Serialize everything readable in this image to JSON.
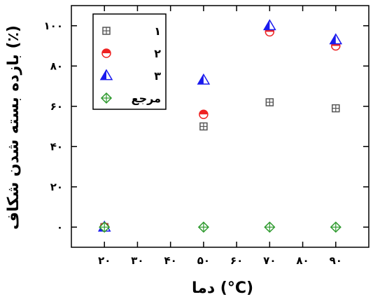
{
  "chart_data": {
    "type": "scatter",
    "xlabel": "دما (°C)",
    "ylabel": "بازده بسته شدن شکاف (٪)",
    "xlim": [
      10,
      100
    ],
    "ylim": [
      -10,
      110
    ],
    "x_ticks": [
      20,
      30,
      40,
      50,
      60,
      70,
      80,
      90
    ],
    "x_tick_labels": [
      "۲۰",
      "۳۰",
      "۴۰",
      "۵۰",
      "۶۰",
      "۷۰",
      "۸۰",
      "۹۰"
    ],
    "y_ticks": [
      0,
      20,
      40,
      60,
      80,
      100
    ],
    "y_tick_labels": [
      "۰",
      "۲۰",
      "۴۰",
      "۶۰",
      "۸۰",
      "۱۰۰"
    ],
    "legend_position": "top-left",
    "series": [
      {
        "name": "۱",
        "marker": "boxplus",
        "color": "#555555",
        "x": [
          20,
          50,
          70,
          90
        ],
        "y": [
          0,
          50,
          62,
          59
        ]
      },
      {
        "name": "۲",
        "marker": "half-circle",
        "color": "#ee2222",
        "x": [
          20,
          50,
          70,
          90
        ],
        "y": [
          0,
          56,
          97,
          90
        ]
      },
      {
        "name": "۳",
        "marker": "half-triangle",
        "color": "#1a1aee",
        "x": [
          20,
          50,
          70,
          90
        ],
        "y": [
          0,
          73,
          100,
          93
        ]
      },
      {
        "name": "مرجع",
        "marker": "diamond-plus",
        "color": "#2e9a2e",
        "x": [
          20,
          50,
          70,
          90
        ],
        "y": [
          0,
          0,
          0,
          0
        ]
      }
    ]
  }
}
